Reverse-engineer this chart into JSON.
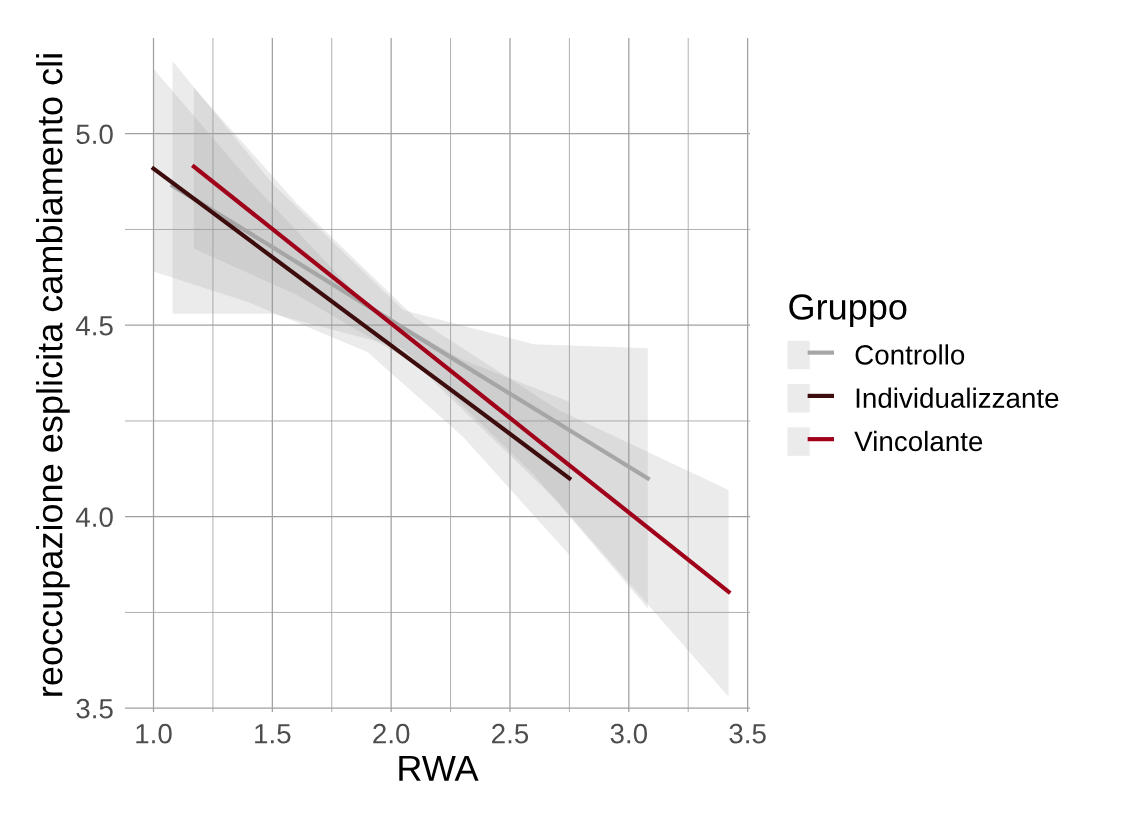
{
  "chart_data": {
    "type": "line",
    "xlabel": "RWA",
    "ylabel": "reoccupazione esplicita cambiamento cli",
    "legend_title": "Gruppo",
    "legend": "right",
    "grid": true,
    "line_style": "solid",
    "xlim": [
      0.88,
      3.51
    ],
    "ylim": [
      3.49,
      5.25
    ],
    "xticks": [
      {
        "value": 1.0,
        "label": "1.0"
      },
      {
        "value": 1.5,
        "label": "1.5"
      },
      {
        "value": 2.0,
        "label": "2.0"
      },
      {
        "value": 2.5,
        "label": "2.5"
      },
      {
        "value": 3.0,
        "label": "3.0"
      },
      {
        "value": 3.5,
        "label": "3.5"
      }
    ],
    "yticks": [
      {
        "value": 3.5,
        "label": "3.5"
      },
      {
        "value": 4.0,
        "label": "4.0"
      },
      {
        "value": 4.5,
        "label": "4.5"
      },
      {
        "value": 5.0,
        "label": "5.0"
      }
    ],
    "series": [
      {
        "name": "Controllo",
        "color": "#a6a6a6",
        "x": [
          1.08,
          1.5,
          2.05,
          2.6,
          3.08
        ],
        "values": [
          4.864,
          4.704,
          4.493,
          4.283,
          4.1
        ],
        "lower": [
          4.53,
          4.53,
          4.44,
          4.11,
          3.76
        ],
        "upper": [
          5.19,
          4.87,
          4.54,
          4.45,
          4.44
        ]
      },
      {
        "name": "Individualizzante",
        "color": "#3d0c0c",
        "x": [
          1.0,
          1.4,
          1.9,
          2.3,
          2.75
        ],
        "values": [
          4.909,
          4.724,
          4.493,
          4.309,
          4.1
        ],
        "lower": [
          4.64,
          4.56,
          4.43,
          4.21,
          3.9
        ],
        "upper": [
          5.17,
          4.88,
          4.55,
          4.41,
          4.3
        ]
      },
      {
        "name": "Vincolante",
        "color": "#a0001a",
        "x": [
          1.17,
          1.6,
          2.1,
          2.7,
          3.42
        ],
        "values": [
          4.914,
          4.702,
          4.455,
          4.159,
          3.804
        ],
        "lower": [
          4.7,
          4.58,
          4.4,
          4.04,
          3.53
        ],
        "upper": [
          5.12,
          4.82,
          4.52,
          4.28,
          4.07
        ]
      }
    ]
  }
}
